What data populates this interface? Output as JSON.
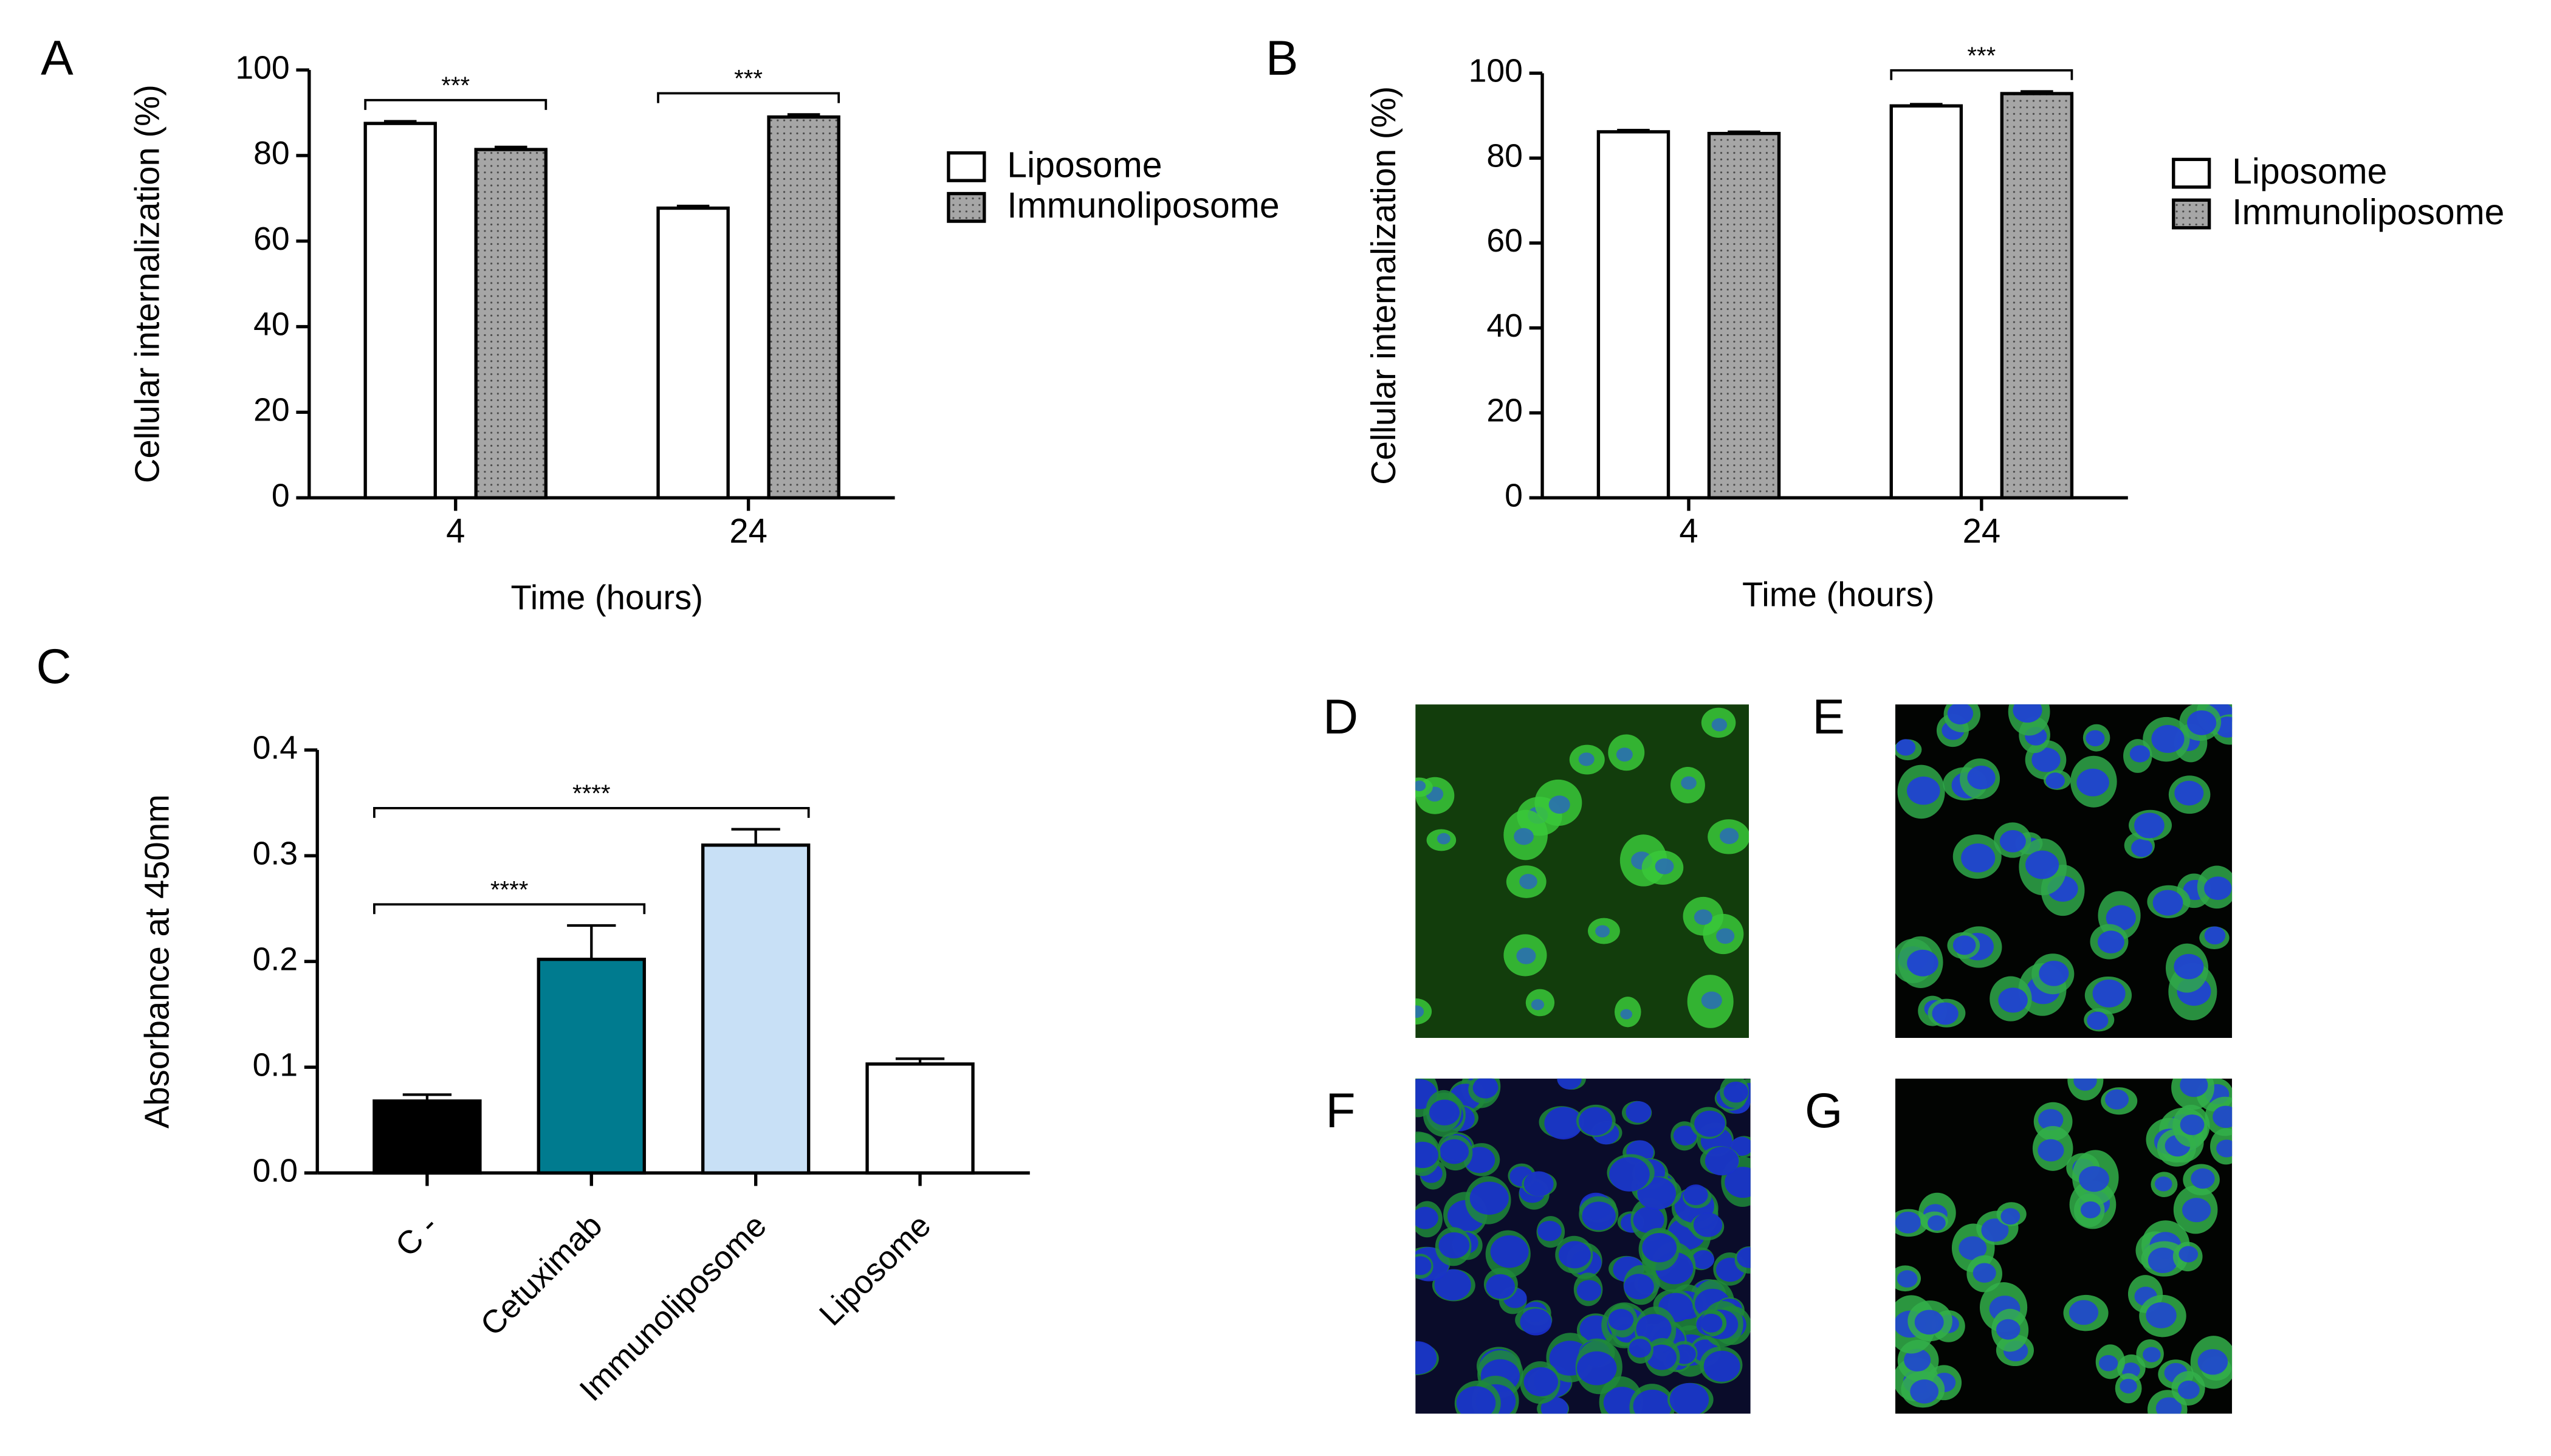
{
  "chart_data": [
    {
      "type": "bar",
      "label": "A",
      "categories": [
        "4",
        "24"
      ],
      "x_label": "Time (hours)",
      "y_label": "Cellular internalization (%)",
      "ylim": [
        0,
        100
      ],
      "yticks": [
        0,
        20,
        40,
        60,
        80,
        100
      ],
      "legend": "right",
      "series": [
        {
          "name": "Liposome",
          "color": "#ffffff",
          "values": [
            87.5,
            67.7
          ],
          "errors": [
            0.5,
            0.5
          ]
        },
        {
          "name": "Immunoliposome",
          "color": "#a6a6a6",
          "pattern": "dots",
          "values": [
            81.4,
            89
          ],
          "errors": [
            0.6,
            0.6
          ]
        }
      ],
      "annotations": [
        {
          "text": "***",
          "from": "4",
          "to": "4"
        },
        {
          "text": "***",
          "from": "24",
          "to": "24"
        }
      ]
    },
    {
      "type": "bar",
      "label": "B",
      "categories": [
        "4",
        "24"
      ],
      "x_label": "Time (hours)",
      "y_label": "Cellular internalization (%)",
      "ylim": [
        0,
        100
      ],
      "yticks": [
        0,
        20,
        40,
        60,
        80,
        100
      ],
      "legend": "right",
      "series": [
        {
          "name": "Liposome",
          "color": "#ffffff",
          "values": [
            86.2,
            92.3
          ],
          "errors": [
            0.4,
            0.4
          ]
        },
        {
          "name": "Immunoliposome",
          "color": "#a6a6a6",
          "pattern": "dots",
          "values": [
            85.8,
            95.2
          ],
          "errors": [
            0.4,
            0.5
          ]
        }
      ],
      "annotations": [
        {
          "text": "***",
          "from": "24",
          "to": "24"
        }
      ]
    },
    {
      "type": "bar",
      "label": "C",
      "categories": [
        "C -",
        "Cetuximab",
        "Immunoliposome",
        "Liposome"
      ],
      "y_label": "Absorbance at 450nm",
      "values": [
        0.068,
        0.202,
        0.31,
        0.103
      ],
      "errors": [
        0.006,
        0.032,
        0.015,
        0.005
      ],
      "colors": [
        "#000000",
        "#007b8f",
        "#c8e0f6",
        "#ffffff"
      ],
      "ylim": [
        0,
        0.4
      ],
      "yticks": [
        {
          "value": 0,
          "label": "0.0"
        },
        {
          "value": 0.1,
          "label": "0.1"
        },
        {
          "value": 0.2,
          "label": "0.2"
        },
        {
          "value": 0.3,
          "label": "0.3"
        },
        {
          "value": 0.4,
          "label": "0.4"
        }
      ],
      "annotations": [
        {
          "text": "****",
          "from": "C -",
          "to": "Cetuximab"
        },
        {
          "text": "****",
          "from": "C -",
          "to": "Immunoliposome"
        }
      ]
    }
  ],
  "image_panels": [
    {
      "label": "D"
    },
    {
      "label": "E"
    },
    {
      "label": "F"
    },
    {
      "label": "G"
    }
  ]
}
